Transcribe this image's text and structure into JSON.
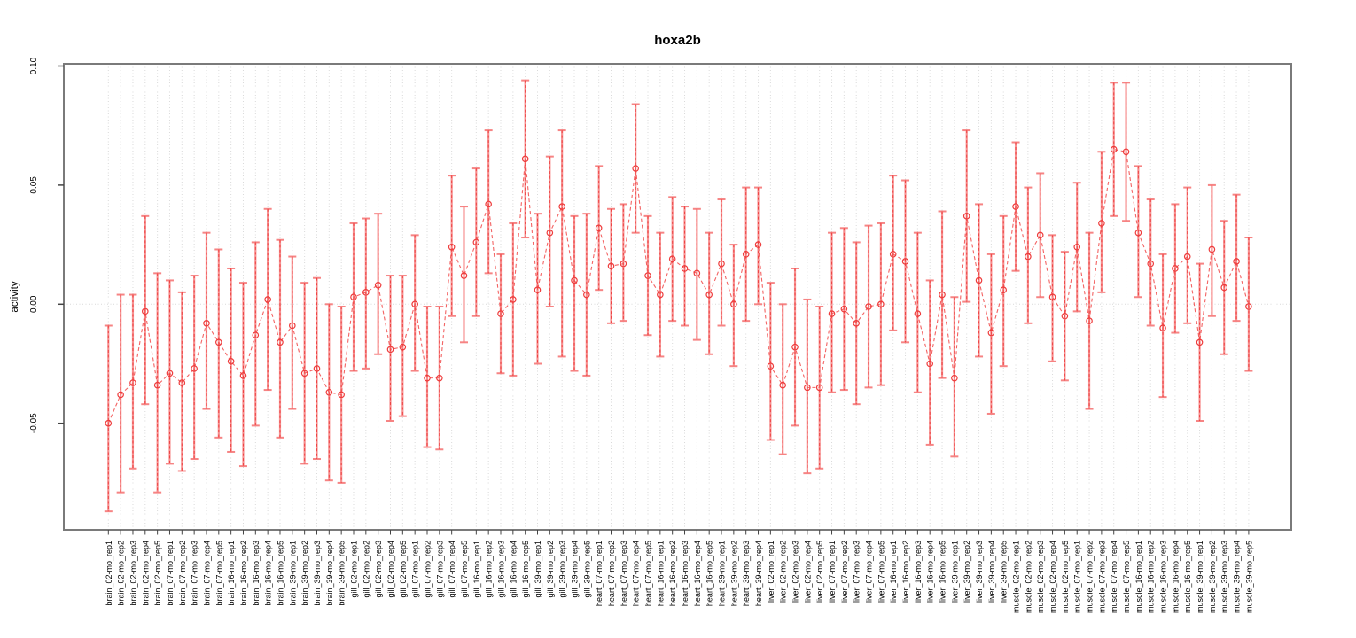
{
  "title": "hoxa2b",
  "y_axis": {
    "label": "activity"
  },
  "colors": {
    "point_stroke": "#ee3b3b",
    "errorbar": "#f67e7e",
    "connector": "#f25252",
    "grid": "#d9d9d9",
    "frame": "#7a7a7a",
    "tick": "#444444",
    "text": "#000000",
    "background": "#ffffff"
  },
  "chart_data": {
    "type": "scatter",
    "subtype": "points-with-error-bars",
    "title": "hoxa2b",
    "xlabel": "",
    "ylabel": "activity",
    "ylim": [
      -0.095,
      0.101
    ],
    "grid": "vertical dotted line per category plus dotted zero line",
    "legend_position": "none",
    "y_ticks": [
      {
        "label": "0.10",
        "value": 0.1
      },
      {
        "label": "0.05",
        "value": 0.05
      },
      {
        "label": "0.00",
        "value": 0.0
      },
      {
        "label": "-0.05",
        "value": -0.05
      }
    ],
    "points": [
      {
        "label": "brain_02-mo_rep1",
        "value": -0.05,
        "lo": -0.087,
        "hi": -0.009
      },
      {
        "label": "brain_02-mo_rep2",
        "value": -0.038,
        "lo": -0.079,
        "hi": 0.004
      },
      {
        "label": "brain_02-mo_rep3",
        "value": -0.033,
        "lo": -0.069,
        "hi": 0.004
      },
      {
        "label": "brain_02-mo_rep4",
        "value": -0.003,
        "lo": -0.042,
        "hi": 0.037
      },
      {
        "label": "brain_02-mo_rep5",
        "value": -0.034,
        "lo": -0.079,
        "hi": 0.013
      },
      {
        "label": "brain_07-mo_rep1",
        "value": -0.029,
        "lo": -0.067,
        "hi": 0.01
      },
      {
        "label": "brain_07-mo_rep2",
        "value": -0.033,
        "lo": -0.07,
        "hi": 0.005
      },
      {
        "label": "brain_07-mo_rep3",
        "value": -0.027,
        "lo": -0.065,
        "hi": 0.012
      },
      {
        "label": "brain_07-mo_rep4",
        "value": -0.008,
        "lo": -0.044,
        "hi": 0.03
      },
      {
        "label": "brain_07-mo_rep5",
        "value": -0.016,
        "lo": -0.056,
        "hi": 0.023
      },
      {
        "label": "brain_16-mo_rep1",
        "value": -0.024,
        "lo": -0.062,
        "hi": 0.015
      },
      {
        "label": "brain_16-mo_rep2",
        "value": -0.03,
        "lo": -0.068,
        "hi": 0.009
      },
      {
        "label": "brain_16-mo_rep3",
        "value": -0.013,
        "lo": -0.051,
        "hi": 0.026
      },
      {
        "label": "brain_16-mo_rep4",
        "value": 0.002,
        "lo": -0.036,
        "hi": 0.04
      },
      {
        "label": "brain_16-mo_rep5",
        "value": -0.016,
        "lo": -0.056,
        "hi": 0.027
      },
      {
        "label": "brain_39-mo_rep1",
        "value": -0.009,
        "lo": -0.044,
        "hi": 0.02
      },
      {
        "label": "brain_39-mo_rep2",
        "value": -0.029,
        "lo": -0.067,
        "hi": 0.009
      },
      {
        "label": "brain_39-mo_rep3",
        "value": -0.027,
        "lo": -0.065,
        "hi": 0.011
      },
      {
        "label": "brain_39-mo_rep4",
        "value": -0.037,
        "lo": -0.074,
        "hi": 0.0
      },
      {
        "label": "brain_39-mo_rep5",
        "value": -0.038,
        "lo": -0.075,
        "hi": -0.001
      },
      {
        "label": "gill_02-mo_rep1",
        "value": 0.003,
        "lo": -0.028,
        "hi": 0.034
      },
      {
        "label": "gill_02-mo_rep2",
        "value": 0.005,
        "lo": -0.027,
        "hi": 0.036
      },
      {
        "label": "gill_02-mo_rep3",
        "value": 0.008,
        "lo": -0.021,
        "hi": 0.038
      },
      {
        "label": "gill_02-mo_rep4",
        "value": -0.019,
        "lo": -0.049,
        "hi": 0.012
      },
      {
        "label": "gill_02-mo_rep5",
        "value": -0.018,
        "lo": -0.047,
        "hi": 0.012
      },
      {
        "label": "gill_07-mo_rep1",
        "value": 0.0,
        "lo": -0.028,
        "hi": 0.029
      },
      {
        "label": "gill_07-mo_rep2",
        "value": -0.031,
        "lo": -0.06,
        "hi": -0.001
      },
      {
        "label": "gill_07-mo_rep3",
        "value": -0.031,
        "lo": -0.061,
        "hi": -0.001
      },
      {
        "label": "gill_07-mo_rep4",
        "value": 0.024,
        "lo": -0.005,
        "hi": 0.054
      },
      {
        "label": "gill_07-mo_rep5",
        "value": 0.012,
        "lo": -0.016,
        "hi": 0.041
      },
      {
        "label": "gill_16-mo_rep1",
        "value": 0.026,
        "lo": -0.005,
        "hi": 0.057
      },
      {
        "label": "gill_16-mo_rep2",
        "value": 0.042,
        "lo": 0.013,
        "hi": 0.073
      },
      {
        "label": "gill_16-mo_rep3",
        "value": -0.004,
        "lo": -0.029,
        "hi": 0.021
      },
      {
        "label": "gill_16-mo_rep4",
        "value": 0.002,
        "lo": -0.03,
        "hi": 0.034
      },
      {
        "label": "gill_16-mo_rep5",
        "value": 0.061,
        "lo": 0.028,
        "hi": 0.094
      },
      {
        "label": "gill_39-mo_rep1",
        "value": 0.006,
        "lo": -0.025,
        "hi": 0.038
      },
      {
        "label": "gill_39-mo_rep2",
        "value": 0.03,
        "lo": -0.001,
        "hi": 0.062
      },
      {
        "label": "gill_39-mo_rep3",
        "value": 0.041,
        "lo": -0.022,
        "hi": 0.073
      },
      {
        "label": "gill_39-mo_rep4",
        "value": 0.01,
        "lo": -0.028,
        "hi": 0.037
      },
      {
        "label": "gill_39-mo_rep5",
        "value": 0.004,
        "lo": -0.03,
        "hi": 0.038
      },
      {
        "label": "heart_07-mo_rep1",
        "value": 0.032,
        "lo": 0.006,
        "hi": 0.058
      },
      {
        "label": "heart_07-mo_rep2",
        "value": 0.016,
        "lo": -0.008,
        "hi": 0.04
      },
      {
        "label": "heart_07-mo_rep3",
        "value": 0.017,
        "lo": -0.007,
        "hi": 0.042
      },
      {
        "label": "heart_07-mo_rep4",
        "value": 0.057,
        "lo": 0.03,
        "hi": 0.084
      },
      {
        "label": "heart_07-mo_rep5",
        "value": 0.012,
        "lo": -0.013,
        "hi": 0.037
      },
      {
        "label": "heart_16-mo_rep1",
        "value": 0.004,
        "lo": -0.022,
        "hi": 0.03
      },
      {
        "label": "heart_16-mo_rep2",
        "value": 0.019,
        "lo": -0.007,
        "hi": 0.045
      },
      {
        "label": "heart_16-mo_rep3",
        "value": 0.015,
        "lo": -0.009,
        "hi": 0.041
      },
      {
        "label": "heart_16-mo_rep4",
        "value": 0.013,
        "lo": -0.015,
        "hi": 0.04
      },
      {
        "label": "heart_16-mo_rep5",
        "value": 0.004,
        "lo": -0.021,
        "hi": 0.03
      },
      {
        "label": "heart_39-mo_rep1",
        "value": 0.017,
        "lo": -0.009,
        "hi": 0.044
      },
      {
        "label": "heart_39-mo_rep2",
        "value": 0.0,
        "lo": -0.026,
        "hi": 0.025
      },
      {
        "label": "heart_39-mo_rep3",
        "value": 0.021,
        "lo": -0.007,
        "hi": 0.049
      },
      {
        "label": "heart_39-mo_rep4",
        "value": 0.025,
        "lo": 0.0,
        "hi": 0.049
      },
      {
        "label": "liver_02-mo_rep1",
        "value": -0.026,
        "lo": -0.057,
        "hi": 0.009
      },
      {
        "label": "liver_02-mo_rep2",
        "value": -0.034,
        "lo": -0.063,
        "hi": 0.0
      },
      {
        "label": "liver_02-mo_rep3",
        "value": -0.018,
        "lo": -0.051,
        "hi": 0.015
      },
      {
        "label": "liver_02-mo_rep4",
        "value": -0.035,
        "lo": -0.071,
        "hi": 0.002
      },
      {
        "label": "liver_02-mo_rep5",
        "value": -0.035,
        "lo": -0.069,
        "hi": -0.001
      },
      {
        "label": "liver_07-mo_rep1",
        "value": -0.004,
        "lo": -0.037,
        "hi": 0.03
      },
      {
        "label": "liver_07-mo_rep2",
        "value": -0.002,
        "lo": -0.036,
        "hi": 0.032
      },
      {
        "label": "liver_07-mo_rep3",
        "value": -0.008,
        "lo": -0.042,
        "hi": 0.026
      },
      {
        "label": "liver_07-mo_rep4",
        "value": -0.001,
        "lo": -0.035,
        "hi": 0.033
      },
      {
        "label": "liver_07-mo_rep5",
        "value": 0.0,
        "lo": -0.034,
        "hi": 0.034
      },
      {
        "label": "liver_16-mo_rep1",
        "value": 0.021,
        "lo": -0.011,
        "hi": 0.054
      },
      {
        "label": "liver_16-mo_rep2",
        "value": 0.018,
        "lo": -0.016,
        "hi": 0.052
      },
      {
        "label": "liver_16-mo_rep3",
        "value": -0.004,
        "lo": -0.037,
        "hi": 0.03
      },
      {
        "label": "liver_16-mo_rep4",
        "value": -0.025,
        "lo": -0.059,
        "hi": 0.01
      },
      {
        "label": "liver_16-mo_rep5",
        "value": 0.004,
        "lo": -0.031,
        "hi": 0.039
      },
      {
        "label": "liver_39-mo_rep1",
        "value": -0.031,
        "lo": -0.064,
        "hi": 0.003
      },
      {
        "label": "liver_39-mo_rep2",
        "value": 0.037,
        "lo": 0.001,
        "hi": 0.073
      },
      {
        "label": "liver_39-mo_rep3",
        "value": 0.01,
        "lo": -0.022,
        "hi": 0.042
      },
      {
        "label": "liver_39-mo_rep4",
        "value": -0.012,
        "lo": -0.046,
        "hi": 0.021
      },
      {
        "label": "liver_39-mo_rep5",
        "value": 0.006,
        "lo": -0.026,
        "hi": 0.037
      },
      {
        "label": "muscle_02-mo_rep1",
        "value": 0.041,
        "lo": 0.014,
        "hi": 0.068
      },
      {
        "label": "muscle_02-mo_rep2",
        "value": 0.02,
        "lo": -0.008,
        "hi": 0.049
      },
      {
        "label": "muscle_02-mo_rep3",
        "value": 0.029,
        "lo": 0.003,
        "hi": 0.055
      },
      {
        "label": "muscle_02-mo_rep4",
        "value": 0.003,
        "lo": -0.024,
        "hi": 0.029
      },
      {
        "label": "muscle_02-mo_rep5",
        "value": -0.005,
        "lo": -0.032,
        "hi": 0.022
      },
      {
        "label": "muscle_07-mo_rep1",
        "value": 0.024,
        "lo": -0.003,
        "hi": 0.051
      },
      {
        "label": "muscle_07-mo_rep2",
        "value": -0.007,
        "lo": -0.044,
        "hi": 0.03
      },
      {
        "label": "muscle_07-mo_rep3",
        "value": 0.034,
        "lo": 0.005,
        "hi": 0.064
      },
      {
        "label": "muscle_07-mo_rep4",
        "value": 0.065,
        "lo": 0.037,
        "hi": 0.093
      },
      {
        "label": "muscle_07-mo_rep5",
        "value": 0.064,
        "lo": 0.035,
        "hi": 0.093
      },
      {
        "label": "muscle_16-mo_rep1",
        "value": 0.03,
        "lo": 0.003,
        "hi": 0.058
      },
      {
        "label": "muscle_16-mo_rep2",
        "value": 0.017,
        "lo": -0.009,
        "hi": 0.044
      },
      {
        "label": "muscle_16-mo_rep3",
        "value": -0.01,
        "lo": -0.039,
        "hi": 0.021
      },
      {
        "label": "muscle_16-mo_rep4",
        "value": 0.015,
        "lo": -0.012,
        "hi": 0.042
      },
      {
        "label": "muscle_16-mo_rep5",
        "value": 0.02,
        "lo": -0.008,
        "hi": 0.049
      },
      {
        "label": "muscle_39-mo_rep1",
        "value": -0.016,
        "lo": -0.049,
        "hi": 0.017
      },
      {
        "label": "muscle_39-mo_rep2",
        "value": 0.023,
        "lo": -0.005,
        "hi": 0.05
      },
      {
        "label": "muscle_39-mo_rep3",
        "value": 0.007,
        "lo": -0.021,
        "hi": 0.035
      },
      {
        "label": "muscle_39-mo_rep4",
        "value": 0.018,
        "lo": -0.007,
        "hi": 0.046
      },
      {
        "label": "muscle_39-mo_rep5",
        "value": -0.001,
        "lo": -0.028,
        "hi": 0.028
      }
    ]
  }
}
